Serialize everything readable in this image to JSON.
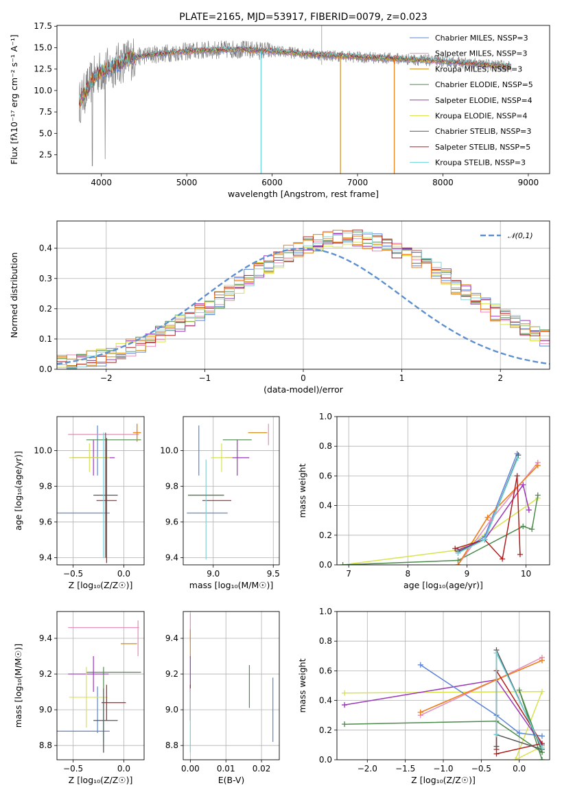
{
  "colors": {
    "Chabrier MILES": "#5a83d8",
    "Salpeter MILES": "#e58ab9",
    "Kroupa MILES": "#d18a16",
    "Chabrier ELODIE": "#4a8a4a",
    "Salpeter ELODIE": "#9a35b8",
    "Kroupa ELODIE": "#d8e34a",
    "Chabrier STELIB": "#555555",
    "Salpeter STELIB": "#b01c1c",
    "Kroupa STELIB": "#6ad4dc",
    "Orange": "#f07f1f",
    "Teal": "#8bcfd1"
  },
  "chart_data": [
    {
      "type": "line",
      "title": "PLATE=2165, MJD=53917, FIBERID=0079, z=0.023",
      "xlabel": "wavelength [Angstrom, rest frame]",
      "ylabel": "Flux [fλ10⁻¹⁷ erg cm⁻² s⁻¹ A⁻¹]",
      "xlim": [
        3480,
        9250
      ],
      "ylim": [
        0.3,
        17.6
      ],
      "xticks": [
        4000,
        5000,
        6000,
        7000,
        8000,
        9000
      ],
      "yticks": [
        2.5,
        5.0,
        7.5,
        10.0,
        12.5,
        15.0,
        17.5
      ],
      "legend_position": "upper right",
      "series": [
        {
          "name": "Chabrier MILES, NSSP=3",
          "color": "#5a83d8"
        },
        {
          "name": "Salpeter MILES, NSSP=3",
          "color": "#e58ab9"
        },
        {
          "name": "Kroupa MILES, NSSP=3",
          "color": "#d18a16"
        },
        {
          "name": "Chabrier ELODIE, NSSP=5",
          "color": "#4a8a4a"
        },
        {
          "name": "Salpeter ELODIE, NSSP=4",
          "color": "#9a35b8"
        },
        {
          "name": "Kroupa ELODIE, NSSP=4",
          "color": "#d8e34a"
        },
        {
          "name": "Chabrier STELIB, NSSP=3",
          "color": "#555555"
        },
        {
          "name": "Salpeter STELIB, NSSP=5",
          "color": "#b01c1c"
        },
        {
          "name": "Kroupa STELIB, NSSP=3",
          "color": "#6ad4dc"
        }
      ],
      "continuum": {
        "x": [
          3740,
          3850,
          3950,
          4100,
          4300,
          4500,
          4800,
          5200,
          5600,
          6000,
          6500,
          7000,
          7500,
          8000,
          8500,
          8800
        ],
        "y": [
          8.5,
          10.5,
          12.0,
          12.6,
          13.6,
          14.1,
          14.4,
          14.7,
          14.8,
          14.6,
          14.2,
          13.9,
          13.7,
          13.4,
          13.0,
          12.8
        ]
      },
      "grid": false
    },
    {
      "type": "line",
      "xlabel": "(data-model)/error",
      "ylabel": "Normed distribution",
      "xlim": [
        -2.5,
        2.5
      ],
      "ylim": [
        0,
        0.49
      ],
      "xticks": [
        -2,
        -1,
        0,
        1,
        2
      ],
      "yticks": [
        0.0,
        0.1,
        0.2,
        0.3,
        0.4
      ],
      "legend_label": "𝒩(0,1)",
      "legend_position": "upper right",
      "bin_width": 0.1,
      "histogram_approx": [
        0.018,
        0.022,
        0.028,
        0.033,
        0.04,
        0.05,
        0.06,
        0.072,
        0.085,
        0.1,
        0.118,
        0.135,
        0.152,
        0.17,
        0.188,
        0.208,
        0.23,
        0.255,
        0.278,
        0.302,
        0.325,
        0.346,
        0.365,
        0.382,
        0.396,
        0.408,
        0.418,
        0.426,
        0.432,
        0.434,
        0.432,
        0.426,
        0.418,
        0.408,
        0.396,
        0.382,
        0.365,
        0.346,
        0.325,
        0.302,
        0.278,
        0.255,
        0.23,
        0.208,
        0.188,
        0.17,
        0.152,
        0.135,
        0.118,
        0.1
      ],
      "grid": true
    },
    {
      "type": "scatter",
      "xlabel": "Z [log₁₀(Z/Z☉)]",
      "ylabel": "age  [log₁₀(age/yr)]",
      "xlim": [
        -0.66,
        0.2
      ],
      "ylim": [
        9.36,
        10.19
      ],
      "xticks": [
        -0.5,
        0.0
      ],
      "yticks": [
        9.4,
        9.6,
        9.8,
        10.0
      ],
      "points": [
        {
          "c": "#5a83d8",
          "x": -0.4,
          "xe": 0.26,
          "y": 9.65,
          "ye": 0.0
        },
        {
          "c": "#5a83d8",
          "x": -0.26,
          "xe": 0.0,
          "y": 10.0,
          "ye": 0.14
        },
        {
          "c": "#e58ab9",
          "x": -0.2,
          "xe": 0.35,
          "y": 10.09,
          "ye": 0.0
        },
        {
          "c": "#d18a16",
          "x": 0.13,
          "xe": 0.04,
          "y": 10.1,
          "ye": 0.05
        },
        {
          "c": "#4a8a4a",
          "x": -0.1,
          "xe": 0.27,
          "y": 10.06,
          "ye": 0.0
        },
        {
          "c": "#9a35b8",
          "x": -0.3,
          "xe": 0.21,
          "y": 9.96,
          "ye": 0.1
        },
        {
          "c": "#d8e34a",
          "x": -0.34,
          "xe": 0.2,
          "y": 9.96,
          "ye": 0.08
        },
        {
          "c": "#555555",
          "x": -0.18,
          "xe": 0.12,
          "y": 9.75,
          "ye": 0.35
        },
        {
          "c": "#b01c1c",
          "x": -0.17,
          "xe": 0.1,
          "y": 9.72,
          "ye": 0.35
        },
        {
          "c": "#6ad4dc",
          "x": -0.2,
          "xe": 0.0,
          "y": 9.75,
          "ye": 0.35
        },
        {
          "c": "#f07f1f",
          "x": 0.13,
          "xe": 0.03,
          "y": 10.1,
          "ye": 0.05
        }
      ],
      "grid": true
    },
    {
      "type": "scatter",
      "xlabel": "mass [log₁₀(M/M☉)]",
      "ylabel": "",
      "xlim": [
        8.75,
        9.55
      ],
      "ylim": [
        9.36,
        10.19
      ],
      "xticks": [
        9.0,
        9.5
      ],
      "yticks": [
        9.4,
        9.6,
        9.8,
        10.0
      ],
      "points": [
        {
          "c": "#5a83d8",
          "x": 8.88,
          "xe": 0.0,
          "y": 10.0,
          "ye": 0.14
        },
        {
          "c": "#5a83d8",
          "x": 8.95,
          "xe": 0.17,
          "y": 9.65,
          "ye": 0.0
        },
        {
          "c": "#e58ab9",
          "x": 9.46,
          "xe": 0.0,
          "y": 10.09,
          "ye": 0.06
        },
        {
          "c": "#d18a16",
          "x": 9.37,
          "xe": 0.08,
          "y": 10.1,
          "ye": 0.0
        },
        {
          "c": "#4a8a4a",
          "x": 9.2,
          "xe": 0.12,
          "y": 10.06,
          "ye": 0.0
        },
        {
          "c": "#9a35b8",
          "x": 9.2,
          "xe": 0.1,
          "y": 9.96,
          "ye": 0.1
        },
        {
          "c": "#d8e34a",
          "x": 9.07,
          "xe": 0.09,
          "y": 9.96,
          "ye": 0.08
        },
        {
          "c": "#555555",
          "x": 8.94,
          "xe": 0.15,
          "y": 9.75,
          "ye": 0.0
        },
        {
          "c": "#b01c1c",
          "x": 9.03,
          "xe": 0.12,
          "y": 9.72,
          "ye": 0.0
        },
        {
          "c": "#8bcfd1",
          "x": 8.94,
          "xe": 0.0,
          "y": 9.67,
          "ye": 0.28
        },
        {
          "c": "#4a8a4a",
          "x": 8.94,
          "xe": 0.15,
          "y": 9.75,
          "ye": 0.0
        }
      ],
      "grid": true
    },
    {
      "type": "line",
      "xlabel": "age  [log₁₀(age/yr)]",
      "ylabel": "mass weight",
      "xlim": [
        6.8,
        10.4
      ],
      "ylim": [
        0,
        1
      ],
      "xticks": [
        7,
        8,
        9,
        10
      ],
      "yticks": [
        0.0,
        0.2,
        0.4,
        0.6,
        0.8,
        1.0
      ],
      "series": [
        {
          "c": "#d8e34a",
          "x": [
            6.9,
            8.85,
            9.3,
            10.2
          ],
          "y": [
            0.0,
            0.1,
            0.2,
            0.45
          ]
        },
        {
          "c": "#4a8a4a",
          "x": [
            6.9,
            8.85,
            9.95,
            10.1,
            10.2
          ],
          "y": [
            0.0,
            0.03,
            0.26,
            0.24,
            0.47
          ]
        },
        {
          "c": "#5a83d8",
          "x": [
            8.85,
            9.3,
            9.85
          ],
          "y": [
            0.08,
            0.19,
            0.75
          ]
        },
        {
          "c": "#e58ab9",
          "x": [
            8.85,
            9.4,
            10.2
          ],
          "y": [
            0.0,
            0.3,
            0.69
          ]
        },
        {
          "c": "#d18a16",
          "x": [
            8.85,
            9.35,
            10.2
          ],
          "y": [
            0.0,
            0.32,
            0.67
          ]
        },
        {
          "c": "#f07f1f",
          "x": [
            8.85,
            9.35,
            10.2
          ],
          "y": [
            0.0,
            0.32,
            0.67
          ]
        },
        {
          "c": "#9a35b8",
          "x": [
            8.85,
            9.3,
            9.95,
            10.05
          ],
          "y": [
            0.1,
            0.17,
            0.54,
            0.37
          ]
        },
        {
          "c": "#b01c1c",
          "x": [
            8.8,
            9.3,
            9.6,
            9.85,
            9.9
          ],
          "y": [
            0.11,
            0.17,
            0.04,
            0.6,
            0.07
          ]
        },
        {
          "c": "#555555",
          "x": [
            8.85,
            9.3,
            9.87
          ],
          "y": [
            0.09,
            0.17,
            0.74
          ]
        },
        {
          "c": "#6ad4dc",
          "x": [
            8.85,
            9.3,
            9.86
          ],
          "y": [
            0.08,
            0.17,
            0.72
          ]
        }
      ],
      "grid": true
    },
    {
      "type": "scatter",
      "xlabel": "Z [log₁₀(Z/Z☉)]",
      "ylabel": "mass [log₁₀(M/M☉)]",
      "xlim": [
        -0.66,
        0.2
      ],
      "ylim": [
        8.72,
        9.55
      ],
      "xticks": [
        -0.5,
        0.0
      ],
      "yticks": [
        8.8,
        9.0,
        9.2,
        9.4
      ],
      "points": [
        {
          "c": "#5a83d8",
          "x": -0.4,
          "xe": 0.26,
          "y": 8.88,
          "ye": 0.0
        },
        {
          "c": "#5a83d8",
          "x": -0.26,
          "xe": 0.0,
          "y": 9.0,
          "ye": 0.13
        },
        {
          "c": "#e58ab9",
          "x": -0.2,
          "xe": 0.35,
          "y": 9.46,
          "ye": 0.0
        },
        {
          "c": "#e58ab9",
          "x": 0.14,
          "xe": 0.0,
          "y": 9.4,
          "ye": 0.1
        },
        {
          "c": "#d18a16",
          "x": 0.05,
          "xe": 0.08,
          "y": 9.37,
          "ye": 0.0
        },
        {
          "c": "#4a8a4a",
          "x": -0.1,
          "xe": 0.27,
          "y": 9.21,
          "ye": 0.0
        },
        {
          "c": "#4a8a4a",
          "x": -0.2,
          "xe": 0.0,
          "y": 9.0,
          "ye": 0.24
        },
        {
          "c": "#9a35b8",
          "x": -0.35,
          "xe": 0.2,
          "y": 9.2,
          "ye": 0.0
        },
        {
          "c": "#9a35b8",
          "x": -0.3,
          "xe": 0.0,
          "y": 9.2,
          "ye": 0.1
        },
        {
          "c": "#d8e34a",
          "x": -0.35,
          "xe": 0.19,
          "y": 9.07,
          "ye": 0.0
        },
        {
          "c": "#d8e34a",
          "x": -0.37,
          "xe": 0.0,
          "y": 9.07,
          "ye": 0.17
        },
        {
          "c": "#555555",
          "x": -0.18,
          "xe": 0.12,
          "y": 8.94,
          "ye": 0.0
        },
        {
          "c": "#b01c1c",
          "x": -0.1,
          "xe": 0.12,
          "y": 9.04,
          "ye": 0.0
        },
        {
          "c": "#b01c1c",
          "x": -0.17,
          "xe": 0.0,
          "y": 9.04,
          "ye": 0.1
        },
        {
          "c": "#6ad4dc",
          "x": -0.2,
          "xe": 0.0,
          "y": 8.94,
          "ye": 0.12
        },
        {
          "c": "#555555",
          "x": -0.2,
          "xe": 0.0,
          "y": 8.94,
          "ye": 0.18
        }
      ],
      "grid": true
    },
    {
      "type": "scatter",
      "xlabel": "E(B-V)",
      "ylabel": "",
      "xlim": [
        -0.002,
        0.025
      ],
      "ylim": [
        8.72,
        9.55
      ],
      "xticks": [
        0.0,
        0.01,
        0.02
      ],
      "yticks": [
        8.8,
        9.0,
        9.2,
        9.4
      ],
      "points": [
        {
          "c": "#e58ab9",
          "x": 0.0,
          "xe": 0.0,
          "y": 9.46,
          "ye": 0.08
        },
        {
          "c": "#d18a16",
          "x": 0.0,
          "xe": 0.0,
          "y": 9.37,
          "ye": 0.08
        },
        {
          "c": "#9a35b8",
          "x": 0.0,
          "xe": 0.0,
          "y": 9.2,
          "ye": 0.1
        },
        {
          "c": "#b01c1c",
          "x": 0.0,
          "xe": 0.0,
          "y": 9.04,
          "ye": 0.1
        },
        {
          "c": "#6ad4dc",
          "x": 0.0,
          "xe": 0.0,
          "y": 8.94,
          "ye": 0.18
        },
        {
          "c": "#4a8a4a",
          "x": 0.0166,
          "xe": 0.0,
          "y": 9.13,
          "ye": 0.12
        },
        {
          "c": "#5a83d8",
          "x": 0.0232,
          "xe": 0.0,
          "y": 9.0,
          "ye": 0.18
        }
      ],
      "grid": true
    },
    {
      "type": "line",
      "xlabel": "Z [log₁₀(Z/Z☉)]",
      "ylabel": "mass weight",
      "xlim": [
        -2.4,
        0.4
      ],
      "ylim": [
        0,
        1
      ],
      "xticks": [
        -2.0,
        -1.5,
        -1.0,
        -0.5,
        0.0
      ],
      "yticks": [
        0.0,
        0.2,
        0.4,
        0.6,
        0.8,
        1.0
      ],
      "series": [
        {
          "c": "#d8e34a",
          "x": [
            -2.3,
            0.3,
            -0.05,
            0.3
          ],
          "y": [
            0.45,
            0.46,
            0.0,
            0.09
          ]
        },
        {
          "c": "#4a8a4a",
          "x": [
            -2.3,
            -0.3,
            0.3,
            0.0,
            0.3
          ],
          "y": [
            0.24,
            0.26,
            0.05,
            0.47,
            0.0
          ]
        },
        {
          "c": "#9a35b8",
          "x": [
            -2.3,
            -0.3,
            0.3
          ],
          "y": [
            0.37,
            0.54,
            0.1
          ]
        },
        {
          "c": "#5a83d8",
          "x": [
            -1.3,
            -0.3,
            0.0,
            0.3
          ],
          "y": [
            0.64,
            0.3,
            0.18,
            0.16
          ]
        },
        {
          "c": "#e58ab9",
          "x": [
            -1.3,
            -0.3,
            0.3
          ],
          "y": [
            0.3,
            0.54,
            0.69
          ]
        },
        {
          "c": "#d18a16",
          "x": [
            -1.3,
            -0.3,
            0.3
          ],
          "y": [
            0.32,
            0.54,
            0.67
          ]
        },
        {
          "c": "#f07f1f",
          "x": [
            -1.3,
            -0.3,
            0.3
          ],
          "y": [
            0.32,
            0.54,
            0.67
          ]
        },
        {
          "c": "#b01c1c",
          "x": [
            -0.3,
            -0.3,
            0.3,
            -0.3
          ],
          "y": [
            0.07,
            0.6,
            0.11,
            0.04
          ]
        },
        {
          "c": "#555555",
          "x": [
            -0.3,
            -0.3,
            0.3,
            -0.3
          ],
          "y": [
            0.09,
            0.74,
            0.07,
            0.17
          ]
        },
        {
          "c": "#6ad4dc",
          "x": [
            -0.3,
            -0.3,
            0.3
          ],
          "y": [
            0.17,
            0.72,
            0.08
          ]
        }
      ],
      "grid": true
    }
  ]
}
